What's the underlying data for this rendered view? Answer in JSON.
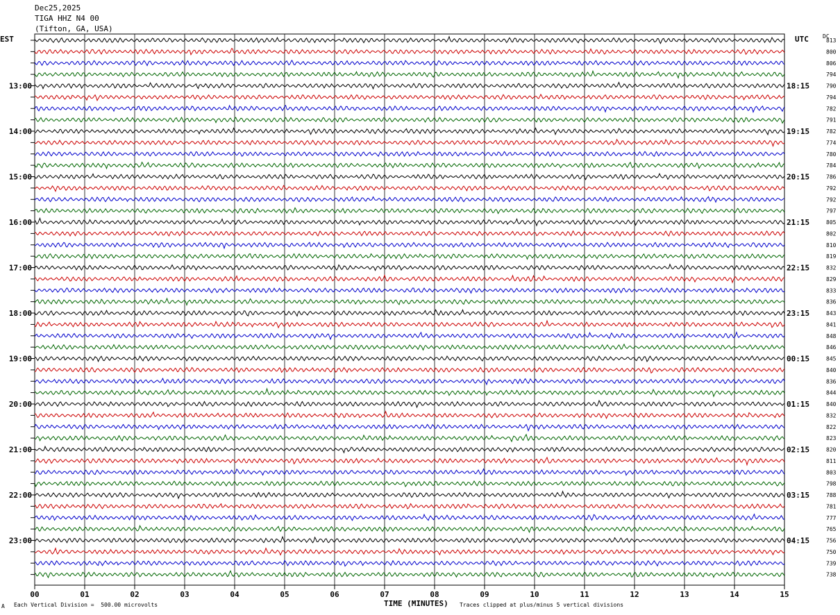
{
  "header": {
    "date": "Dec25,2025",
    "station": "TIGA HHZ N4 00",
    "location": "(Tifton, GA, USA)"
  },
  "left_timezone": "EST",
  "right_timezone": "UTC",
  "dc_label": "DC",
  "footer": {
    "scale_marker": "A",
    "scale_note": "Each Vertical Division =  500.00 microvolts",
    "clip_note": "Traces clipped at plus/minus 5 vertical divisions"
  },
  "chart_data": {
    "type": "line",
    "xlabel": "TIME (MINUTES)",
    "xlim": [
      0,
      15
    ],
    "x_ticks": [
      "00",
      "01",
      "02",
      "03",
      "04",
      "05",
      "06",
      "07",
      "08",
      "09",
      "10",
      "11",
      "12",
      "13",
      "14",
      "15"
    ],
    "trace_colors": [
      "#000000",
      "#cc0000",
      "#0000cc",
      "#006600"
    ],
    "left_hour_labels": [
      "13:00",
      "14:00",
      "15:00",
      "16:00",
      "17:00",
      "18:00",
      "19:00",
      "20:00",
      "21:00",
      "22:00",
      "23:00"
    ],
    "right_hour_labels": [
      "18:15",
      "19:15",
      "20:15",
      "21:15",
      "22:15",
      "23:15",
      "00:15",
      "01:15",
      "02:15",
      "03:15",
      "04:15"
    ],
    "dc_offsets": [
      "813",
      "800",
      "806",
      "794",
      "790",
      "794",
      "782",
      "791",
      "782",
      "774",
      "780",
      "784",
      "786",
      "792",
      "792",
      "797",
      "805",
      "802",
      "810",
      "819",
      "832",
      "829",
      "833",
      "836",
      "843",
      "841",
      "848",
      "846",
      "845",
      "840",
      "836",
      "844",
      "840",
      "832",
      "822",
      "823",
      "820",
      "811",
      "803",
      "798",
      "788",
      "781",
      "777",
      "765",
      "756",
      "750",
      "739",
      "738"
    ]
  }
}
